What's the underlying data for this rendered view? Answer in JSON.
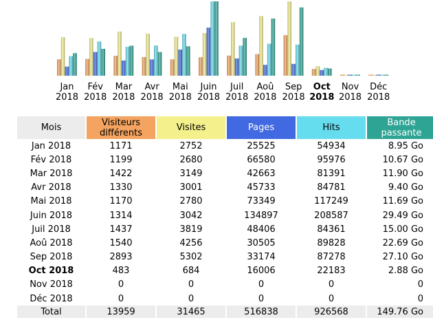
{
  "colors": {
    "visitors": "#f4a460",
    "visits": "#f4f08c",
    "pages": "#4169e1",
    "hits": "#66ddee",
    "bandwidth": "#2ea495",
    "month_header": "#ececec",
    "total_row": "#ececec"
  },
  "chart_data": {
    "type": "bar",
    "categories": [
      "Jan",
      "Fév",
      "Mar",
      "Avr",
      "Mai",
      "Juin",
      "Juil",
      "Aoû",
      "Sep",
      "Oct",
      "Nov",
      "Déc"
    ],
    "category_years": [
      "2018",
      "2018",
      "2018",
      "2018",
      "2018",
      "2018",
      "2018",
      "2018",
      "2018",
      "2018",
      "2018",
      "2018"
    ],
    "current_category": "Oct",
    "series": [
      {
        "name": "Visiteurs différents",
        "color": "#f4a460",
        "values": [
          1171,
          1199,
          1422,
          1330,
          1170,
          1314,
          1437,
          1540,
          2893,
          483,
          0,
          0
        ]
      },
      {
        "name": "Visites",
        "color": "#f4f08c",
        "values": [
          2752,
          2680,
          3149,
          3001,
          2780,
          3042,
          3819,
          4256,
          5302,
          684,
          0,
          0
        ]
      },
      {
        "name": "Pages",
        "color": "#4169e1",
        "values": [
          25525,
          66580,
          42663,
          45733,
          73349,
          134897,
          48406,
          30505,
          33174,
          16006,
          0,
          0
        ]
      },
      {
        "name": "Hits",
        "color": "#66ddee",
        "values": [
          54934,
          95976,
          81391,
          84781,
          117249,
          208587,
          84361,
          89828,
          87278,
          22183,
          0,
          0
        ]
      },
      {
        "name": "Bande passante",
        "color": "#2ea495",
        "values": [
          8.95,
          10.67,
          11.9,
          9.4,
          11.69,
          29.49,
          15.0,
          22.69,
          27.1,
          2.88,
          0,
          0
        ]
      }
    ],
    "title": "",
    "xlabel": "",
    "ylabel": ""
  },
  "table": {
    "headers": {
      "month": "Mois",
      "visitors": "Visiteurs différents",
      "visits": "Visites",
      "pages": "Pages",
      "hits": "Hits",
      "bandwidth": "Bande passante"
    },
    "rows": [
      {
        "month": "Jan 2018",
        "visitors": "1171",
        "visits": "2752",
        "pages": "25525",
        "hits": "54934",
        "bandwidth": "8.95 Go"
      },
      {
        "month": "Fév 2018",
        "visitors": "1199",
        "visits": "2680",
        "pages": "66580",
        "hits": "95976",
        "bandwidth": "10.67 Go"
      },
      {
        "month": "Mar 2018",
        "visitors": "1422",
        "visits": "3149",
        "pages": "42663",
        "hits": "81391",
        "bandwidth": "11.90 Go"
      },
      {
        "month": "Avr 2018",
        "visitors": "1330",
        "visits": "3001",
        "pages": "45733",
        "hits": "84781",
        "bandwidth": "9.40 Go"
      },
      {
        "month": "Mai 2018",
        "visitors": "1170",
        "visits": "2780",
        "pages": "73349",
        "hits": "117249",
        "bandwidth": "11.69 Go"
      },
      {
        "month": "Juin 2018",
        "visitors": "1314",
        "visits": "3042",
        "pages": "134897",
        "hits": "208587",
        "bandwidth": "29.49 Go"
      },
      {
        "month": "Juil 2018",
        "visitors": "1437",
        "visits": "3819",
        "pages": "48406",
        "hits": "84361",
        "bandwidth": "15.00 Go"
      },
      {
        "month": "Aoû 2018",
        "visitors": "1540",
        "visits": "4256",
        "pages": "30505",
        "hits": "89828",
        "bandwidth": "22.69 Go"
      },
      {
        "month": "Sep 2018",
        "visitors": "2893",
        "visits": "5302",
        "pages": "33174",
        "hits": "87278",
        "bandwidth": "27.10 Go"
      },
      {
        "month": "Oct 2018",
        "visitors": "483",
        "visits": "684",
        "pages": "16006",
        "hits": "22183",
        "bandwidth": "2.88 Go"
      },
      {
        "month": "Nov 2018",
        "visitors": "0",
        "visits": "0",
        "pages": "0",
        "hits": "0",
        "bandwidth": "0"
      },
      {
        "month": "Déc 2018",
        "visitors": "0",
        "visits": "0",
        "pages": "0",
        "hits": "0",
        "bandwidth": "0"
      }
    ],
    "current_row_index": 9,
    "total": {
      "month": "Total",
      "visitors": "13959",
      "visits": "31465",
      "pages": "516838",
      "hits": "926568",
      "bandwidth": "149.76 Go"
    }
  }
}
